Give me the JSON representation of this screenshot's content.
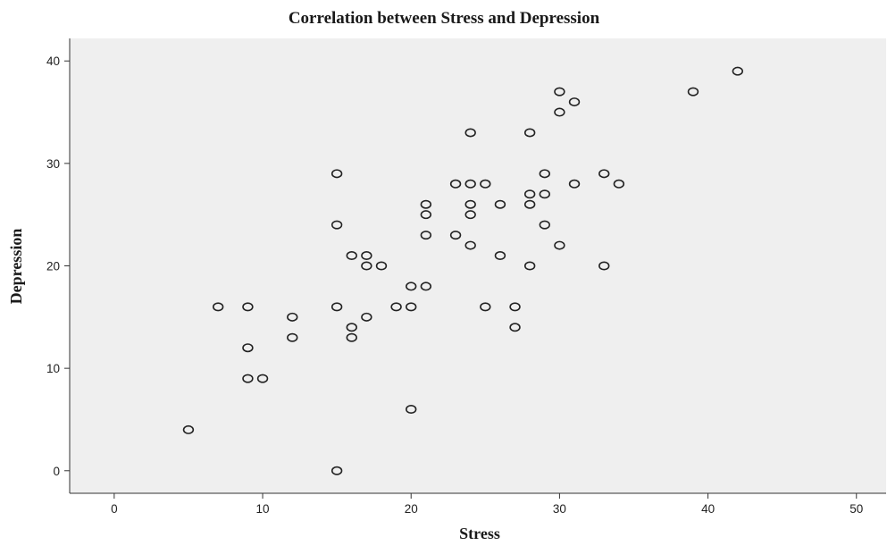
{
  "chart_data": {
    "type": "scatter",
    "title": "Correlation between Stress and Depression",
    "xlabel": "Stress",
    "ylabel": "Depression",
    "xlim": [
      -3,
      52
    ],
    "ylim": [
      -2.2,
      42.2
    ],
    "xticks": [
      0,
      10,
      20,
      30,
      40,
      50
    ],
    "yticks": [
      0,
      10,
      20,
      30,
      40
    ],
    "grid": false,
    "legend": "none",
    "colors": {
      "plot_background": "#efefef",
      "marker_stroke": "#222222",
      "axis": "#333333"
    },
    "points": [
      [
        5,
        4
      ],
      [
        7,
        16
      ],
      [
        9,
        16
      ],
      [
        9,
        12
      ],
      [
        9,
        9
      ],
      [
        10,
        9
      ],
      [
        12,
        15
      ],
      [
        12,
        13
      ],
      [
        15,
        29
      ],
      [
        15,
        24
      ],
      [
        15,
        16
      ],
      [
        15,
        0
      ],
      [
        16,
        21
      ],
      [
        16,
        14
      ],
      [
        16,
        13
      ],
      [
        17,
        21
      ],
      [
        17,
        20
      ],
      [
        17,
        15
      ],
      [
        18,
        20
      ],
      [
        19,
        16
      ],
      [
        20,
        18
      ],
      [
        20,
        16
      ],
      [
        20,
        6
      ],
      [
        21,
        26
      ],
      [
        21,
        25
      ],
      [
        21,
        23
      ],
      [
        21,
        18
      ],
      [
        23,
        28
      ],
      [
        23,
        23
      ],
      [
        24,
        33
      ],
      [
        24,
        28
      ],
      [
        24,
        26
      ],
      [
        24,
        25
      ],
      [
        24,
        22
      ],
      [
        25,
        28
      ],
      [
        25,
        16
      ],
      [
        26,
        26
      ],
      [
        26,
        21
      ],
      [
        27,
        16
      ],
      [
        27,
        14
      ],
      [
        28,
        33
      ],
      [
        28,
        27
      ],
      [
        28,
        26
      ],
      [
        28,
        20
      ],
      [
        29,
        29
      ],
      [
        29,
        27
      ],
      [
        29,
        24
      ],
      [
        30,
        37
      ],
      [
        30,
        35
      ],
      [
        30,
        22
      ],
      [
        31,
        36
      ],
      [
        31,
        28
      ],
      [
        33,
        29
      ],
      [
        33,
        20
      ],
      [
        34,
        28
      ],
      [
        39,
        37
      ],
      [
        42,
        39
      ]
    ]
  }
}
